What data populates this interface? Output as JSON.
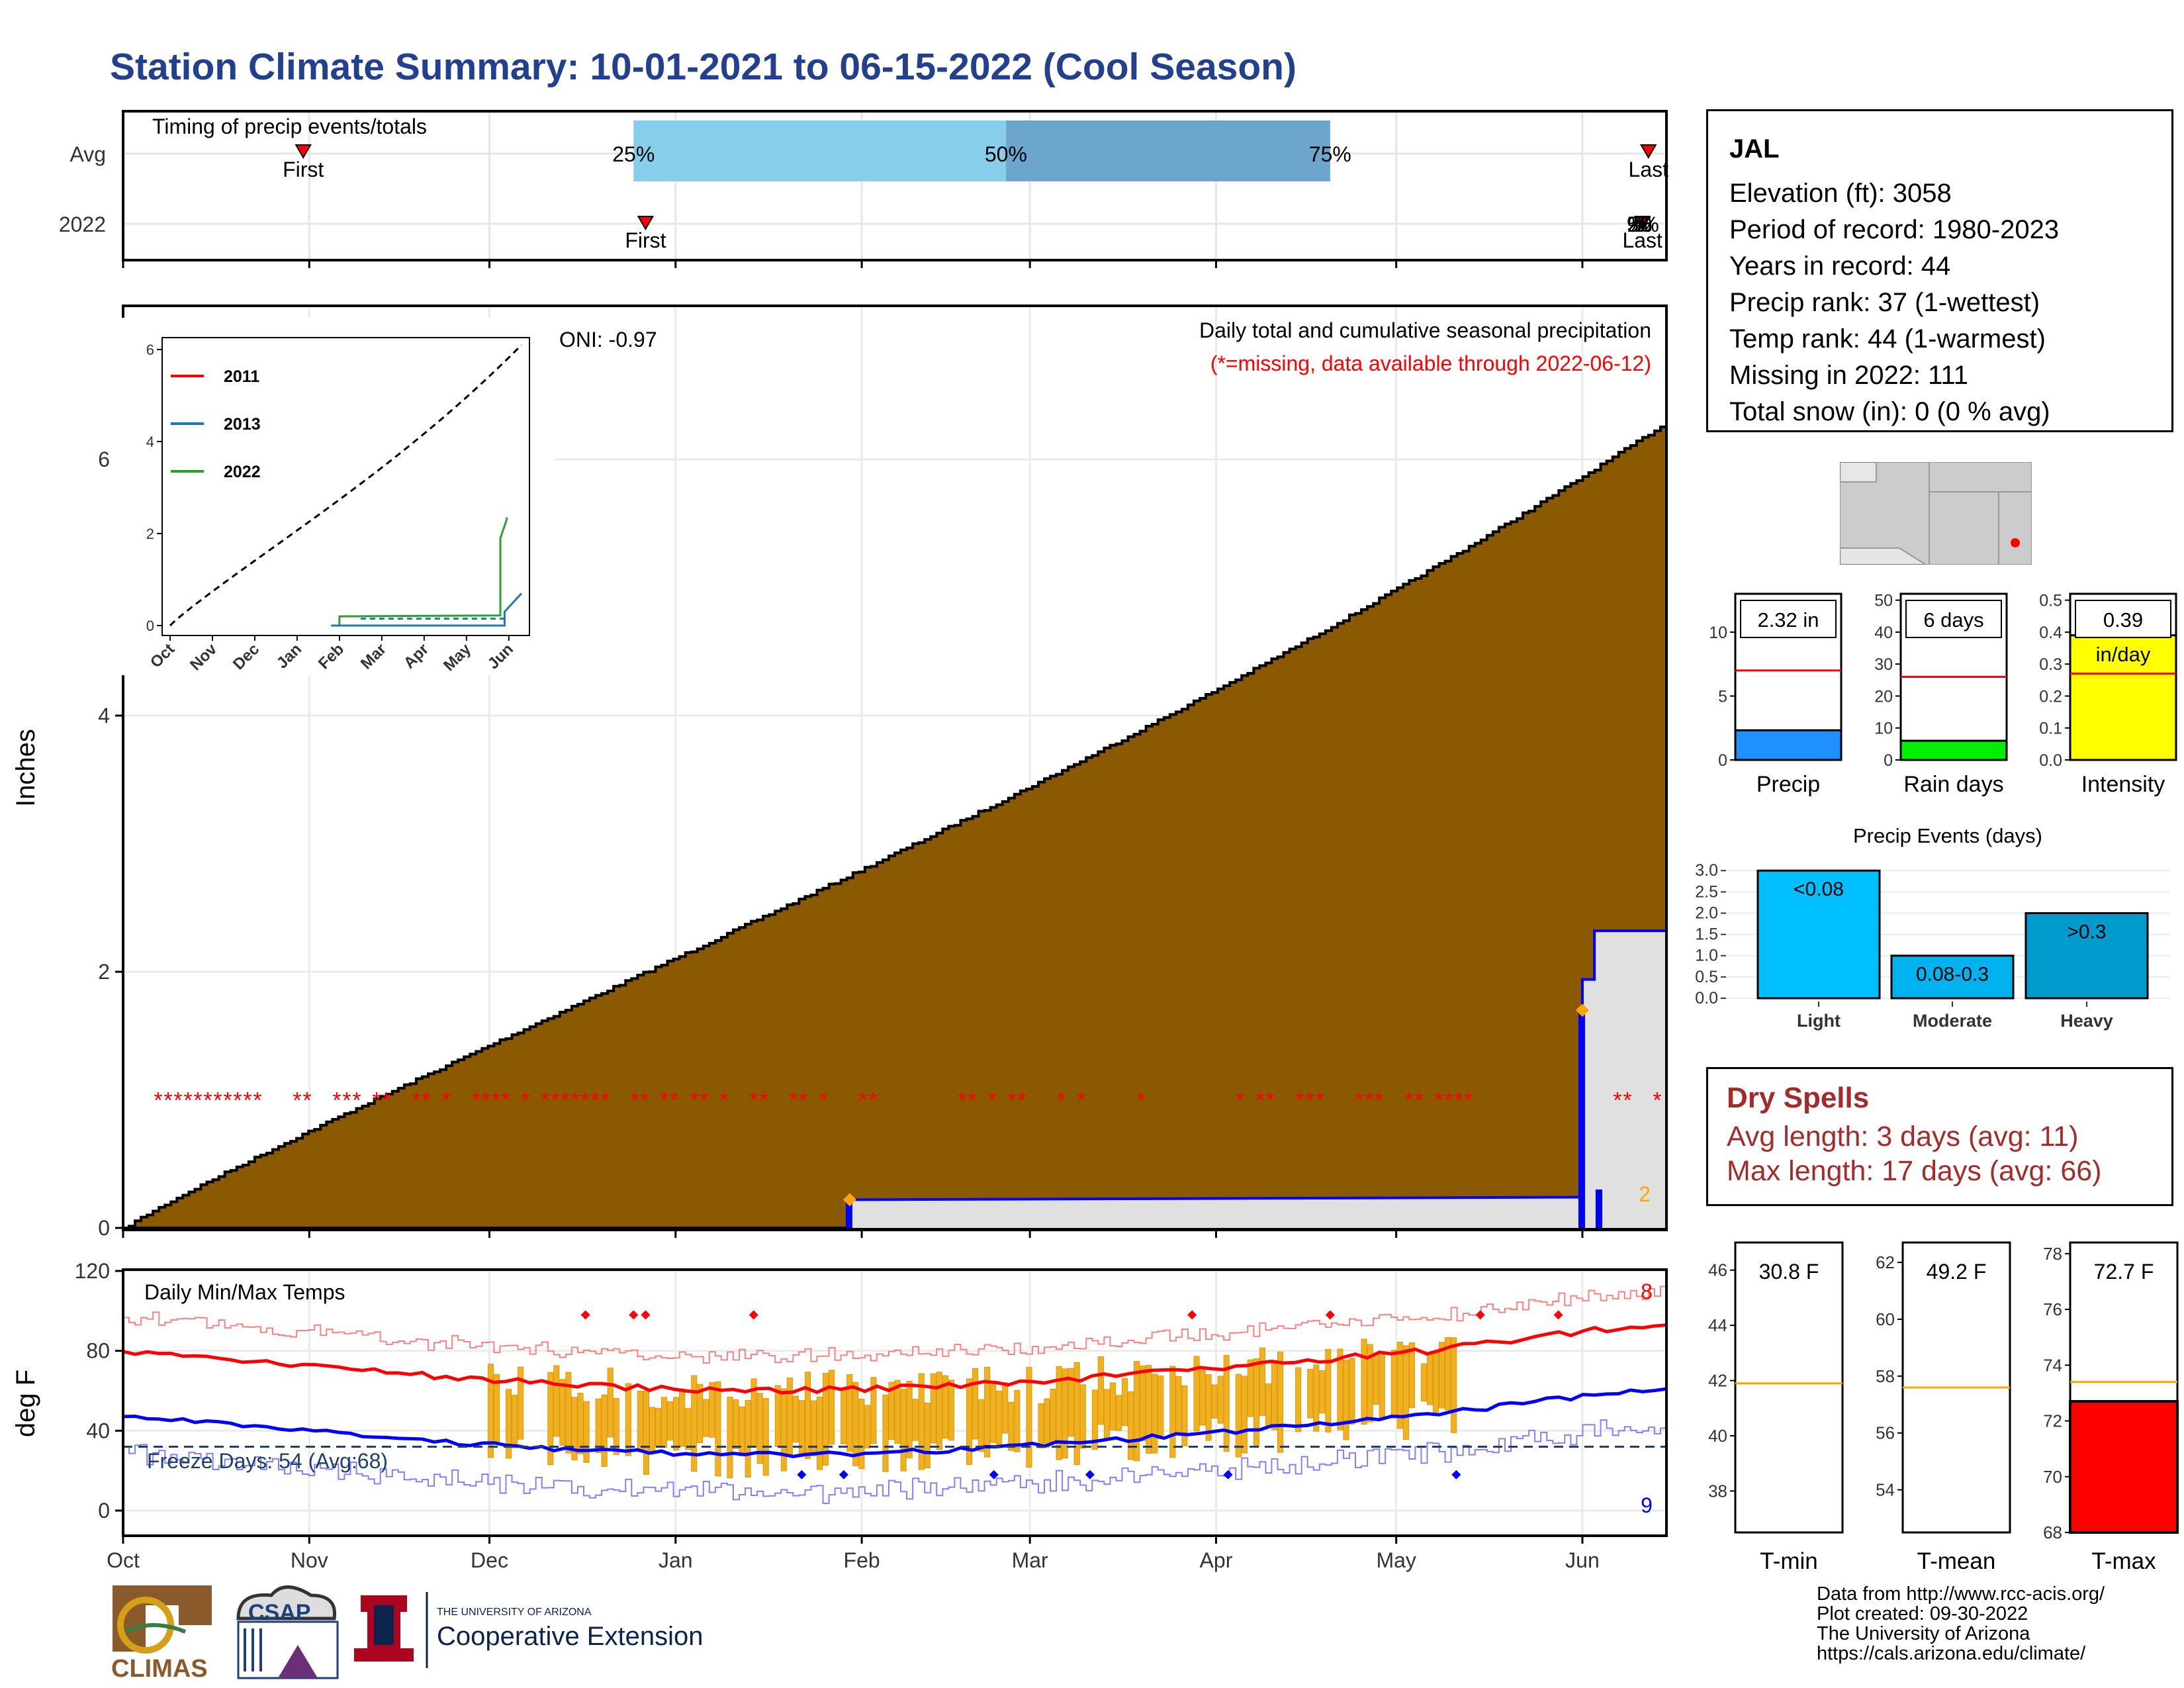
{
  "title": "Station Climate Summary: 10-01-2021 to 06-15-2022 (Cool Season)",
  "timing": {
    "label": "Timing of precip events/totals",
    "rows": [
      "Avg",
      "2022"
    ],
    "pct_labels": [
      "25%",
      "50%",
      "75%"
    ],
    "first_label": "First",
    "last_label": "Last",
    "overlap_label": "25%75%50%",
    "avg_first_date": "2021-10-31",
    "avg_last_date": "2022-06-12",
    "avg_q25_date": "2021-12-25",
    "avg_q50_date": "2022-02-25",
    "avg_q75_date": "2022-04-20",
    "y2022_first_date": "2021-12-27",
    "y2022_last_date": "2022-06-11",
    "arrow_color": "#ff0000",
    "band_colors": [
      "#87ceeb",
      "#6ca6cd"
    ]
  },
  "precip_chart": {
    "ylabel": "Inches",
    "oni": "ONI: -0.97",
    "caption1": "Daily total and cumulative seasonal precipitation",
    "caption2": "(*=missing, data available through 2022-06-12)",
    "caption2_color": "#ff0000",
    "missing_symbol": "*",
    "ycount_label": "2",
    "fill_color": "#8b5a00",
    "line_color": "#0000ff",
    "yticks": [
      "0",
      "2",
      "4",
      "6"
    ],
    "inset": {
      "legend": [
        {
          "name": "2011",
          "color": "#ff0000"
        },
        {
          "name": "2013",
          "color": "#1f77b4"
        },
        {
          "name": "2022",
          "color": "#2ca02c"
        }
      ],
      "yticks": [
        "0",
        "2",
        "4",
        "6"
      ],
      "xticks": [
        "Oct",
        "Nov",
        "Dec",
        "Jan",
        "Feb",
        "Mar",
        "Apr",
        "May",
        "Jun"
      ]
    }
  },
  "temp_chart": {
    "ylabel": "deg F",
    "label": "Daily Min/Max Temps",
    "freeze": "Freeze Days: 54 (Avg:68)",
    "max_count": "8",
    "min_count": "9",
    "yticks": [
      "0",
      "40",
      "80",
      "120"
    ],
    "xticks": [
      "Oct",
      "Nov",
      "Dec",
      "Jan",
      "Feb",
      "Mar",
      "Apr",
      "May",
      "Jun"
    ]
  },
  "station": {
    "name": "JAL",
    "lines": [
      "Elevation (ft): 3058",
      "Period of record: 1980-2023",
      "Years in record: 44",
      "Precip rank: 37 (1-wettest)",
      "Temp rank: 44 (1-warmest)",
      "Missing in 2022: 111",
      "Total snow (in): 0 (0 % avg)"
    ]
  },
  "mini_bars": [
    {
      "title": "Precip",
      "value_label": "2.32 in",
      "value": 2.32,
      "avg": 7.0,
      "ymax": 13,
      "yticks": [
        "0",
        "5",
        "10"
      ],
      "tick_vals": [
        0,
        5,
        10
      ],
      "color": "#1e90ff"
    },
    {
      "title": "Rain days",
      "value_label": "6 days",
      "value": 6,
      "avg": 26,
      "ymax": 52,
      "yticks": [
        "0",
        "10",
        "20",
        "30",
        "40",
        "50"
      ],
      "tick_vals": [
        0,
        10,
        20,
        30,
        40,
        50
      ],
      "color": "#00ee00"
    },
    {
      "title": "Intensity",
      "value_label": "0.39",
      "value_label2": "in/day",
      "value": 0.39,
      "avg": 0.27,
      "ymax": 0.52,
      "yticks": [
        "0.0",
        "0.1",
        "0.2",
        "0.3",
        "0.4",
        "0.5"
      ],
      "tick_vals": [
        0,
        0.1,
        0.2,
        0.3,
        0.4,
        0.5
      ],
      "color": "#ffff00"
    }
  ],
  "events": {
    "title": "Precip Events (days)",
    "categories": [
      "Light",
      "Moderate",
      "Heavy"
    ],
    "labels": [
      "<0.08",
      "0.08-0.3",
      ">0.3"
    ],
    "values": [
      3,
      1,
      2
    ],
    "yticks": [
      "0.0",
      "0.5",
      "1.0",
      "1.5",
      "2.0",
      "2.5",
      "3.0"
    ],
    "colors": [
      "#00bfff",
      "#00b2ee",
      "#009acd"
    ]
  },
  "dry_spells": {
    "title": "Dry Spells",
    "avg": "Avg length: 3 days (avg: 11)",
    "max": "Max length: 17 days (avg: 66)",
    "color": "#a52a2a"
  },
  "temp_bars": [
    {
      "title": "T-min",
      "value_label": "30.8 F",
      "value": 30.8,
      "avg": 41.9,
      "ymin": 36.5,
      "ymax": 47,
      "yticks": [
        "38",
        "40",
        "42",
        "44",
        "46"
      ],
      "tick_vals": [
        38,
        40,
        42,
        44,
        46
      ],
      "color": "#ff0000"
    },
    {
      "title": "T-mean",
      "value_label": "49.2 F",
      "value": 49.2,
      "avg": 57.6,
      "ymin": 52.5,
      "ymax": 62.7,
      "yticks": [
        "54",
        "56",
        "58",
        "60",
        "62"
      ],
      "tick_vals": [
        54,
        56,
        58,
        60,
        62
      ],
      "color": "#ff0000"
    },
    {
      "title": "T-max",
      "value_label": "72.7 F",
      "value": 72.7,
      "avg": 73.4,
      "ymin": 68,
      "ymax": 78.4,
      "yticks": [
        "68",
        "70",
        "72",
        "74",
        "76",
        "78"
      ],
      "tick_vals": [
        68,
        70,
        72,
        74,
        76,
        78
      ],
      "color": "#ff0000"
    }
  ],
  "credits": [
    "Data from http://www.rcc-acis.org/",
    "Plot created: 09-30-2022",
    "The University of Arizona",
    "https://cals.arizona.edu/climate/"
  ],
  "logos": {
    "climas": "CLIMAS",
    "csap": "CSAP",
    "ua_small": "THE UNIVERSITY OF ARIZONA",
    "ua_big": "Cooperative Extension"
  }
}
